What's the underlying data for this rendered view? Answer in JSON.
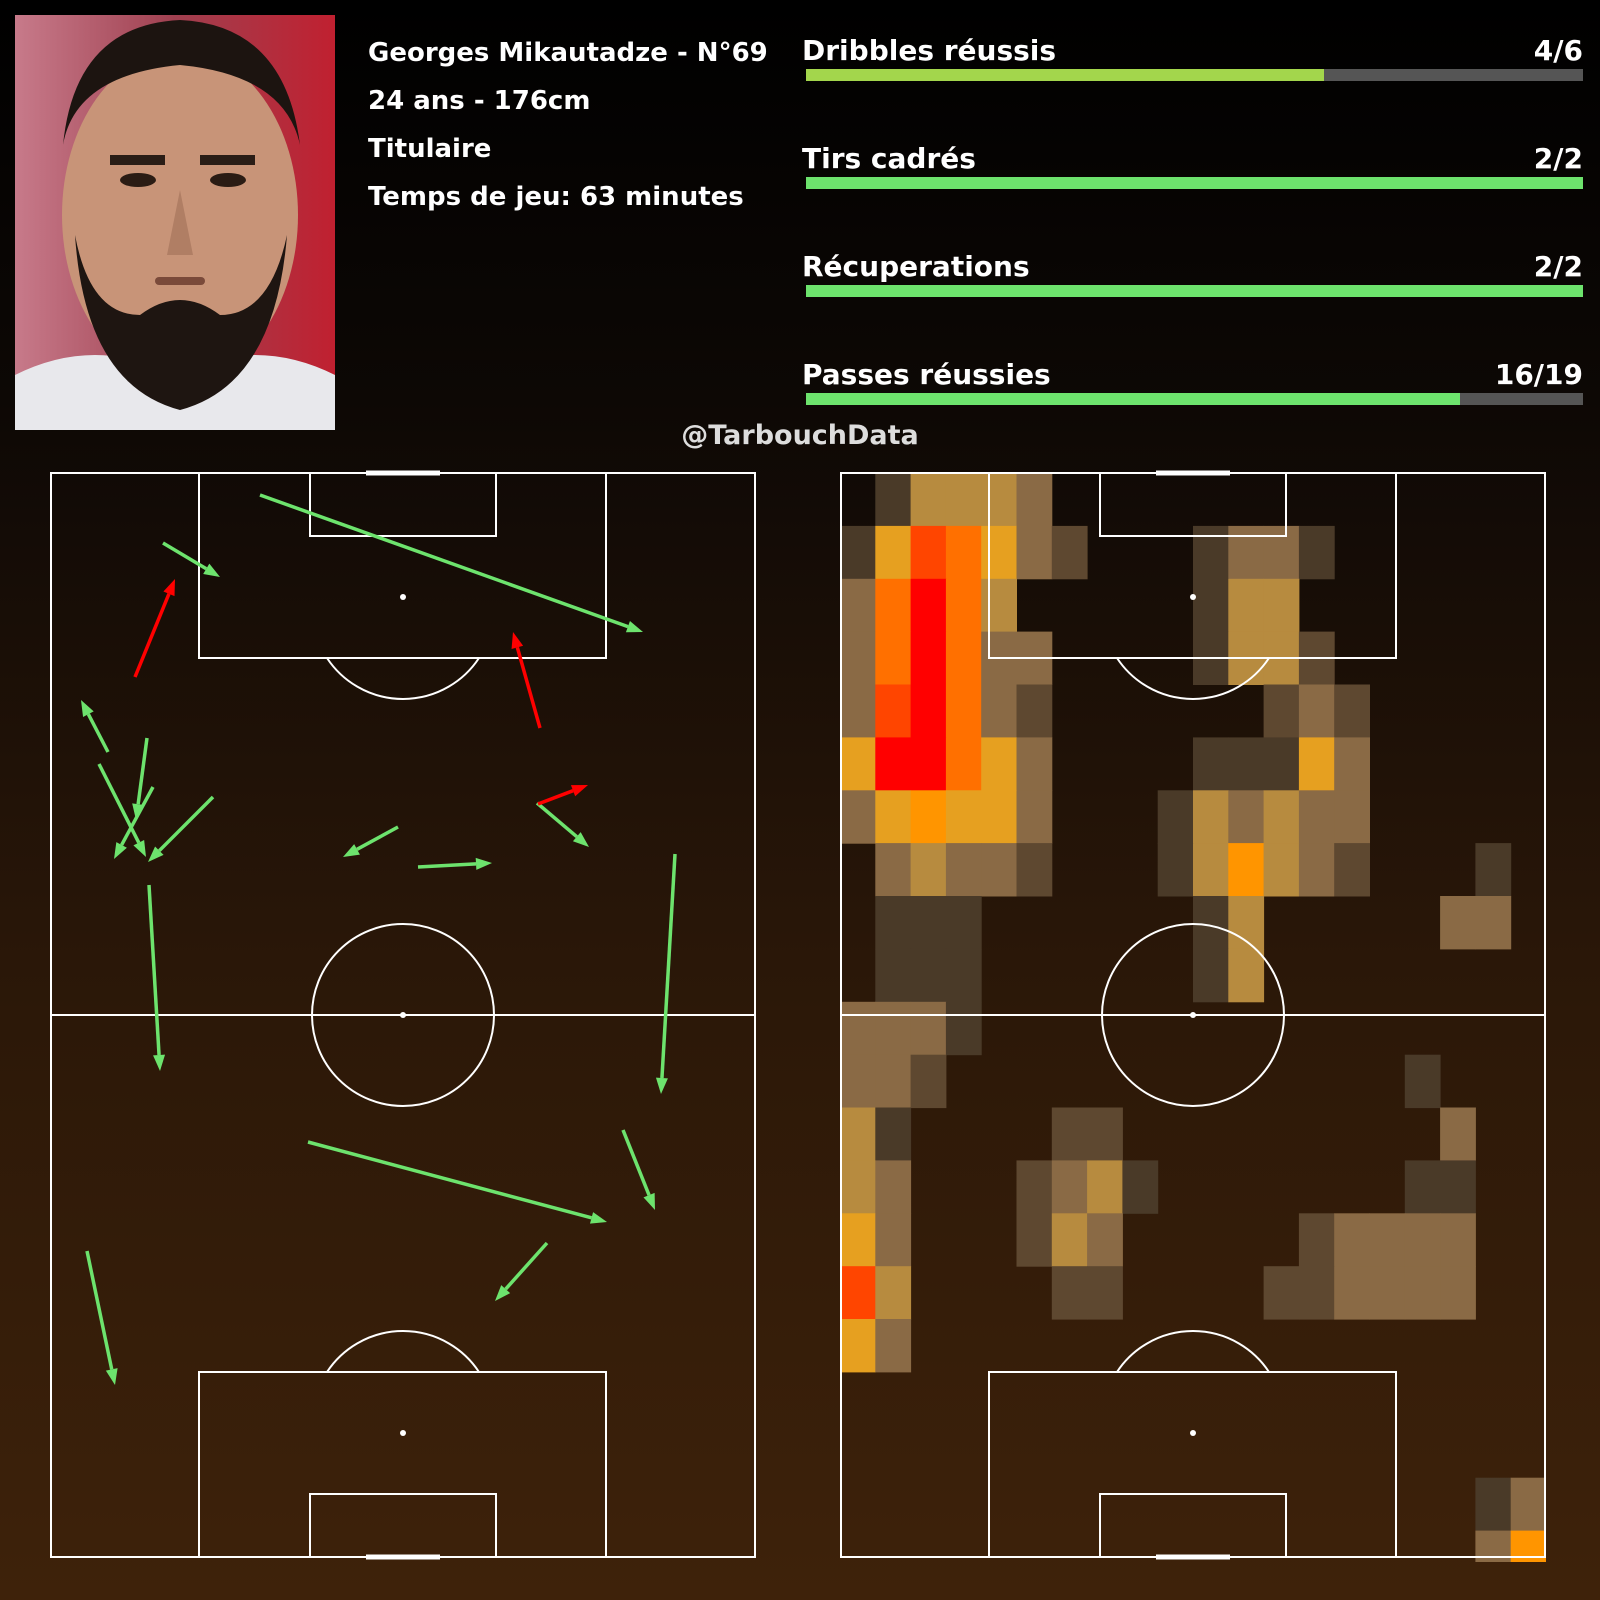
{
  "player": {
    "name_number": "Georges Mikautadze - N°69",
    "age_height": "24 ans - 176cm",
    "status": "Titulaire",
    "playing_time": "Temps de jeu: 63 minutes"
  },
  "stats": [
    {
      "label": "Dribbles réussis",
      "value": "4/6",
      "success": 4,
      "total": 6,
      "color": "#a3d64c"
    },
    {
      "label": "Tirs cadrés",
      "value": "2/2",
      "success": 2,
      "total": 2,
      "color": "#6de36d"
    },
    {
      "label": "Récuperations",
      "value": "2/2",
      "success": 2,
      "total": 2,
      "color": "#6de36d"
    },
    {
      "label": "Passes réussies",
      "value": "16/19",
      "success": 16,
      "total": 19,
      "color": "#6de36d"
    }
  ],
  "watermark": "@TarbouchData",
  "colors": {
    "success_pass": "#6de36d",
    "failed_pass": "#ff0000",
    "pitch_lines": "#ffffff"
  }
}
